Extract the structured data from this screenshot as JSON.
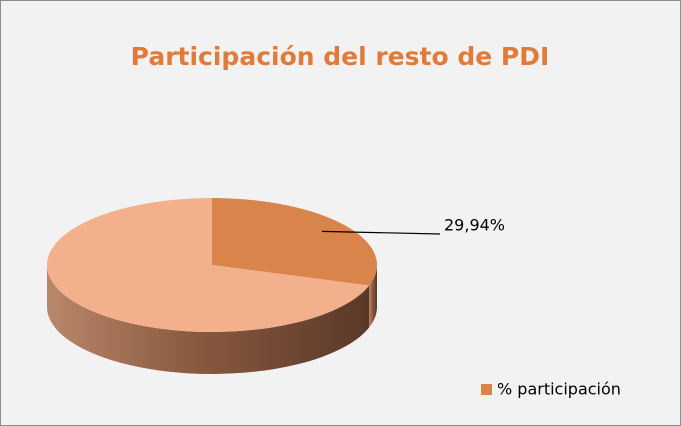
{
  "chart_data": {
    "type": "pie",
    "title": "Participación del resto de PDI",
    "categories": [
      "% participación",
      null
    ],
    "values": [
      29.94,
      70.06
    ],
    "value_labels": [
      "29,94%",
      null
    ],
    "colors": [
      "#d9844a",
      "#f2b08c"
    ],
    "legend": "bottom-right"
  }
}
